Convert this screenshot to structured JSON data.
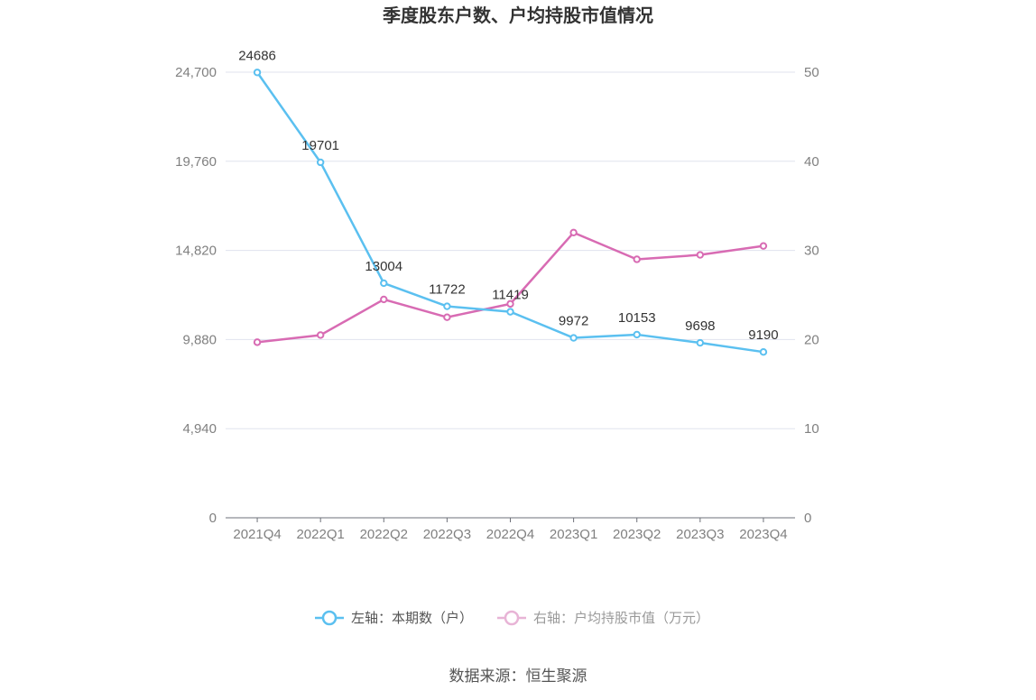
{
  "chart_data": {
    "type": "line",
    "title": "季度股东户数、户均持股市值情况",
    "categories": [
      "2021Q4",
      "2022Q1",
      "2022Q2",
      "2022Q3",
      "2022Q4",
      "2023Q1",
      "2023Q2",
      "2023Q3",
      "2023Q4"
    ],
    "left_axis": {
      "ylim": [
        0,
        24700
      ],
      "ticks": [
        "0",
        "4,940",
        "9,880",
        "14,820",
        "19,760",
        "24,700"
      ]
    },
    "right_axis": {
      "ylim": [
        0,
        50
      ],
      "ticks": [
        "0",
        "10",
        "20",
        "30",
        "40",
        "50"
      ]
    },
    "series": [
      {
        "name": "左轴：本期数（户）",
        "axis": "left",
        "color": "#5bc0f0",
        "values": [
          24686,
          19701,
          13004,
          11722,
          11419,
          9972,
          10153,
          9698,
          9190
        ],
        "labels": [
          "24686",
          "19701",
          "13004",
          "11722",
          "11419",
          "9972",
          "10153",
          "9698",
          "9190"
        ]
      },
      {
        "name": "右轴：户均持股市值（万元）",
        "axis": "right",
        "color": "#d86bb3",
        "values": [
          19.7,
          20.5,
          24.5,
          22.5,
          24.0,
          32.0,
          29.0,
          29.5,
          30.5
        ]
      }
    ],
    "grid": true,
    "legend_position": "bottom",
    "source": "数据来源：恒生聚源"
  }
}
